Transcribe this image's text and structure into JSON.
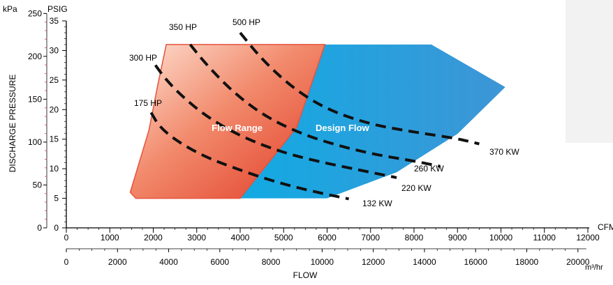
{
  "chart_data": {
    "type": "area",
    "title": "",
    "xlabel": "FLOW",
    "ylabel": "DISCHARGE PRESSURE",
    "axes": {
      "cfm": {
        "unit": "CFM",
        "range": [
          0,
          12000
        ],
        "ticks": [
          "0",
          "1000",
          "2000",
          "3000",
          "4000",
          "5000",
          "6000",
          "7000",
          "8000",
          "9000",
          "10000",
          "11000",
          "12000"
        ]
      },
      "m3hr": {
        "unit": "m³/hr",
        "range": [
          0,
          20400
        ],
        "ticks": [
          "0",
          "2000",
          "4000",
          "6000",
          "8000",
          "10000",
          "12000",
          "14000",
          "16000",
          "18000",
          "20000"
        ]
      },
      "psig": {
        "unit": "PSIG",
        "range": [
          0,
          35
        ],
        "ticks": [
          "0",
          "5",
          "10",
          "15",
          "20",
          "25",
          "30",
          "35"
        ]
      },
      "kpa": {
        "unit": "kPa",
        "range": [
          0,
          241
        ],
        "ticks": [
          "0",
          "50",
          "100",
          "150",
          "200",
          "250"
        ]
      }
    },
    "regions": [
      {
        "name": "Design Flow",
        "color": "#1fa3dc",
        "boundary": [
          [
            2300,
            31
          ],
          [
            8400,
            31
          ],
          [
            10100,
            23.8
          ],
          [
            9000,
            15.9
          ],
          [
            7600,
            9.4
          ],
          [
            6000,
            5
          ],
          [
            4000,
            5
          ],
          [
            3400,
            6.5
          ],
          [
            2300,
            31
          ]
        ]
      },
      {
        "name": "Flow Range",
        "color": "#e8452f",
        "boundary": [
          [
            2300,
            31
          ],
          [
            5950,
            31
          ],
          [
            5300,
            17
          ],
          [
            4000,
            5
          ],
          [
            1600,
            5
          ],
          [
            1470,
            6
          ],
          [
            1900,
            16.5
          ],
          [
            2100,
            24
          ],
          [
            2300,
            31
          ]
        ]
      }
    ],
    "curves": [
      {
        "hp_label": "175 HP",
        "kw_label": "132 KW",
        "points": [
          [
            1950,
            19.5
          ],
          [
            2150,
            17
          ],
          [
            2600,
            14.4
          ],
          [
            3200,
            12
          ],
          [
            3800,
            10.3
          ],
          [
            4500,
            8.5
          ],
          [
            5200,
            7
          ],
          [
            5900,
            5.8
          ],
          [
            6500,
            4.9
          ]
        ]
      },
      {
        "hp_label": "300 HP",
        "kw_label": "220 KW",
        "points": [
          [
            2050,
            27.5
          ],
          [
            2300,
            25
          ],
          [
            2700,
            22
          ],
          [
            3200,
            19
          ],
          [
            3800,
            16.3
          ],
          [
            4500,
            14
          ],
          [
            5200,
            12.3
          ],
          [
            6000,
            10.9
          ],
          [
            6800,
            9.7
          ],
          [
            7600,
            8.5
          ]
        ]
      },
      {
        "hp_label": "350 HP",
        "kw_label": "260 KW",
        "points": [
          [
            2850,
            31
          ],
          [
            3200,
            27.8
          ],
          [
            3800,
            23.2
          ],
          [
            4500,
            19.2
          ],
          [
            5300,
            16.2
          ],
          [
            6200,
            14
          ],
          [
            7100,
            12.4
          ],
          [
            8000,
            11.3
          ],
          [
            8600,
            10.4
          ]
        ]
      },
      {
        "hp_label": "500 HP",
        "kw_label": "370 KW",
        "points": [
          [
            4000,
            33
          ],
          [
            4500,
            28.5
          ],
          [
            5200,
            23.7
          ],
          [
            6000,
            20
          ],
          [
            7000,
            17.5
          ],
          [
            8000,
            16.2
          ],
          [
            9000,
            15.1
          ],
          [
            9500,
            14.2
          ]
        ]
      }
    ]
  },
  "overlays": [
    "panel"
  ]
}
